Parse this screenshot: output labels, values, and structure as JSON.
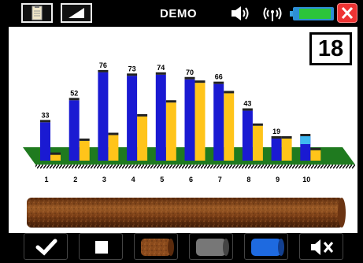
{
  "header": {
    "mode_label": "DEMO",
    "battery_level": 0.8,
    "icons": [
      "clipboard-icon",
      "signal-ramp-icon",
      "speaker-icon",
      "wireless-icon",
      "battery-icon",
      "close-icon"
    ]
  },
  "counter": {
    "value": "18"
  },
  "chart_data": {
    "type": "bar",
    "categories": [
      "1",
      "2",
      "3",
      "4",
      "5",
      "6",
      "7",
      "8",
      "9",
      "10"
    ],
    "series": [
      {
        "values": [
          33,
          52,
          76,
          73,
          74,
          70,
          66,
          43,
          19,
          21
        ]
      },
      {
        "values": [
          5,
          17,
          22,
          38,
          50,
          67,
          58,
          30,
          19,
          9
        ]
      }
    ],
    "data_labels": [
      "33",
      "52",
      "76",
      "73",
      "74",
      "70",
      "66",
      "43",
      "19",
      ""
    ],
    "ylim": [
      0,
      80
    ],
    "colors": {
      "primary": "#1a1ad2",
      "secondary": "#ffc41a",
      "highlight": "#3fb8f0",
      "floor": "#1f7a1f"
    },
    "grid": false,
    "legend": "none"
  },
  "pipe": {
    "color": "#8a4a1c"
  },
  "toolbar": {
    "buttons": [
      {
        "name": "confirm-button",
        "icon": "check-icon"
      },
      {
        "name": "stop-button",
        "icon": "stop-icon"
      },
      {
        "name": "rusty-pipe-button",
        "icon": "rusty-pipe-icon"
      },
      {
        "name": "gray-pipe-button",
        "icon": "gray-pipe-icon"
      },
      {
        "name": "blue-pipe-button",
        "icon": "blue-pipe-icon"
      },
      {
        "name": "mute-button",
        "icon": "mute-icon"
      }
    ]
  }
}
